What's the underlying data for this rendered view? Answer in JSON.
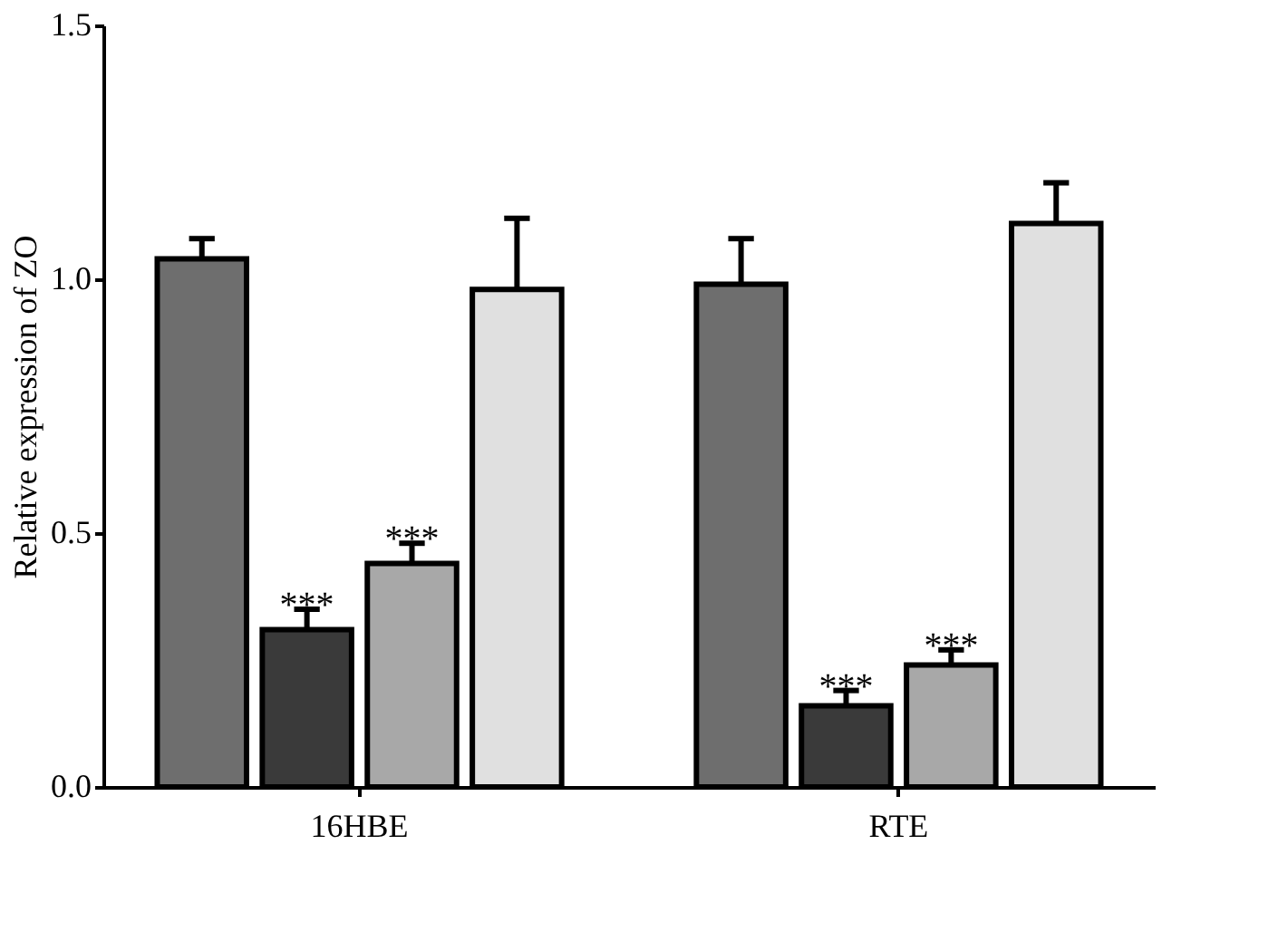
{
  "chart_data": {
    "type": "bar",
    "ylabel": "Relative expression  of ZO",
    "categories": [
      "16HBE",
      "RTE"
    ],
    "series": [
      {
        "color": "#6e6e6e",
        "values": [
          1.04,
          0.99
        ],
        "errors": [
          0.04,
          0.09
        ]
      },
      {
        "color": "#3a3a3a",
        "values": [
          0.31,
          0.16
        ],
        "errors": [
          0.04,
          0.03
        ],
        "value_labels": [
          "***",
          "***"
        ]
      },
      {
        "color": "#a8a8a8",
        "values": [
          0.44,
          0.24
        ],
        "errors": [
          0.04,
          0.03
        ],
        "value_labels": [
          "***",
          "***"
        ]
      },
      {
        "color": "#e0e0e0",
        "values": [
          0.98,
          1.11
        ],
        "errors": [
          0.14,
          0.08
        ]
      }
    ],
    "ylim": [
      0,
      1.5
    ],
    "yticks": [
      {
        "value": 0,
        "label": "0.0"
      },
      {
        "value": 0.5,
        "label": "0.5"
      },
      {
        "value": 1,
        "label": "1.0"
      },
      {
        "value": 1.5,
        "label": "1.5"
      }
    ],
    "grid": false,
    "legend": false
  }
}
